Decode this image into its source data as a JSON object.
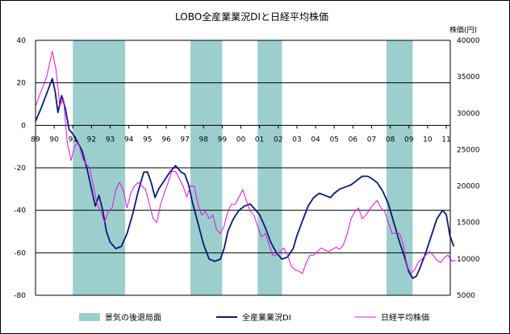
{
  "chart_data": {
    "type": "line",
    "title": "LOBO全産業業況DIと日経平均株価",
    "y2label": "株価(円)",
    "x_ticks": [
      "89",
      "90",
      "91",
      "92",
      "93",
      "94",
      "95",
      "96",
      "97",
      "98",
      "99",
      "00",
      "01",
      "02",
      "03",
      "04",
      "05",
      "06",
      "07",
      "08",
      "09",
      "10",
      "11"
    ],
    "ylim": [
      -80,
      40
    ],
    "y_ticks": [
      "40",
      "20",
      "0",
      "-20",
      "-40",
      "-60",
      "-80"
    ],
    "y2lim": [
      5000,
      40000
    ],
    "y2_ticks": [
      "40000",
      "35000",
      "30000",
      "25000",
      "20000",
      "15000",
      "10000",
      "5000"
    ],
    "grid": true,
    "legend_position": "bottom",
    "recessions": [
      {
        "start": 1991.0,
        "end": 1993.8
      },
      {
        "start": 1997.3,
        "end": 1999.0
      },
      {
        "start": 2000.9,
        "end": 2002.2
      },
      {
        "start": 2007.8,
        "end": 2009.2
      }
    ],
    "series": [
      {
        "name": "全産業業況DI",
        "axis": "left",
        "color": "#0a1a78",
        "points": [
          [
            1989.0,
            2
          ],
          [
            1989.3,
            8
          ],
          [
            1989.6,
            15
          ],
          [
            1989.9,
            22
          ],
          [
            1990.05,
            16
          ],
          [
            1990.2,
            6
          ],
          [
            1990.4,
            14
          ],
          [
            1990.6,
            8
          ],
          [
            1990.8,
            -2
          ],
          [
            1991.0,
            -4
          ],
          [
            1991.2,
            -7
          ],
          [
            1991.5,
            -12
          ],
          [
            1991.8,
            -22
          ],
          [
            1992.0,
            -30
          ],
          [
            1992.2,
            -38
          ],
          [
            1992.4,
            -33
          ],
          [
            1992.6,
            -40
          ],
          [
            1992.8,
            -50
          ],
          [
            1993.0,
            -55
          ],
          [
            1993.3,
            -58
          ],
          [
            1993.6,
            -57
          ],
          [
            1993.9,
            -51
          ],
          [
            1994.2,
            -42
          ],
          [
            1994.5,
            -31
          ],
          [
            1994.8,
            -22
          ],
          [
            1995.0,
            -22
          ],
          [
            1995.2,
            -27
          ],
          [
            1995.4,
            -34
          ],
          [
            1995.6,
            -30
          ],
          [
            1995.9,
            -26
          ],
          [
            1996.2,
            -22
          ],
          [
            1996.5,
            -19
          ],
          [
            1996.8,
            -22
          ],
          [
            1997.0,
            -23
          ],
          [
            1997.2,
            -28
          ],
          [
            1997.4,
            -36
          ],
          [
            1997.7,
            -46
          ],
          [
            1998.0,
            -56
          ],
          [
            1998.3,
            -63
          ],
          [
            1998.6,
            -64
          ],
          [
            1998.9,
            -63
          ],
          [
            1999.1,
            -58
          ],
          [
            1999.3,
            -50
          ],
          [
            1999.6,
            -44
          ],
          [
            1999.9,
            -40
          ],
          [
            2000.2,
            -38
          ],
          [
            2000.5,
            -37
          ],
          [
            2000.8,
            -40
          ],
          [
            2001.0,
            -42
          ],
          [
            2001.3,
            -48
          ],
          [
            2001.6,
            -55
          ],
          [
            2001.9,
            -60
          ],
          [
            2002.2,
            -63
          ],
          [
            2002.5,
            -62
          ],
          [
            2002.8,
            -58
          ],
          [
            2003.0,
            -52
          ],
          [
            2003.3,
            -45
          ],
          [
            2003.6,
            -38
          ],
          [
            2003.9,
            -34
          ],
          [
            2004.2,
            -32
          ],
          [
            2004.5,
            -33
          ],
          [
            2004.8,
            -34
          ],
          [
            2005.0,
            -32
          ],
          [
            2005.3,
            -30
          ],
          [
            2005.6,
            -29
          ],
          [
            2005.9,
            -28
          ],
          [
            2006.2,
            -26
          ],
          [
            2006.5,
            -24
          ],
          [
            2006.8,
            -24
          ],
          [
            2007.0,
            -25
          ],
          [
            2007.3,
            -27
          ],
          [
            2007.6,
            -31
          ],
          [
            2007.9,
            -37
          ],
          [
            2008.2,
            -46
          ],
          [
            2008.5,
            -55
          ],
          [
            2008.8,
            -63
          ],
          [
            2009.0,
            -69
          ],
          [
            2009.2,
            -72
          ],
          [
            2009.4,
            -71
          ],
          [
            2009.6,
            -67
          ],
          [
            2009.9,
            -60
          ],
          [
            2010.2,
            -52
          ],
          [
            2010.5,
            -44
          ],
          [
            2010.8,
            -40
          ],
          [
            2011.0,
            -42
          ],
          [
            2011.2,
            -52
          ],
          [
            2011.4,
            -57
          ]
        ]
      },
      {
        "name": "日経平均株価",
        "axis": "right",
        "color": "#e010e0",
        "points": [
          [
            1989.0,
            31000
          ],
          [
            1989.3,
            33000
          ],
          [
            1989.6,
            35000
          ],
          [
            1989.9,
            38500
          ],
          [
            1990.1,
            36000
          ],
          [
            1990.3,
            31000
          ],
          [
            1990.5,
            32000
          ],
          [
            1990.7,
            26000
          ],
          [
            1990.9,
            23500
          ],
          [
            1991.1,
            25500
          ],
          [
            1991.3,
            26000
          ],
          [
            1991.5,
            24000
          ],
          [
            1991.7,
            23000
          ],
          [
            1991.9,
            22500
          ],
          [
            1992.1,
            20000
          ],
          [
            1992.3,
            17500
          ],
          [
            1992.5,
            16500
          ],
          [
            1992.7,
            15000
          ],
          [
            1992.9,
            16500
          ],
          [
            1993.1,
            17000
          ],
          [
            1993.3,
            19500
          ],
          [
            1993.5,
            20500
          ],
          [
            1993.7,
            19500
          ],
          [
            1993.9,
            17000
          ],
          [
            1994.1,
            19000
          ],
          [
            1994.3,
            20000
          ],
          [
            1994.5,
            20500
          ],
          [
            1994.7,
            20000
          ],
          [
            1994.9,
            19500
          ],
          [
            1995.1,
            17500
          ],
          [
            1995.3,
            15500
          ],
          [
            1995.5,
            15000
          ],
          [
            1995.7,
            17500
          ],
          [
            1995.9,
            19000
          ],
          [
            1996.1,
            20500
          ],
          [
            1996.3,
            22000
          ],
          [
            1996.5,
            22000
          ],
          [
            1996.7,
            21000
          ],
          [
            1996.9,
            20000
          ],
          [
            1997.1,
            18500
          ],
          [
            1997.3,
            20000
          ],
          [
            1997.5,
            20000
          ],
          [
            1997.7,
            17500
          ],
          [
            1997.9,
            16000
          ],
          [
            1998.1,
            16500
          ],
          [
            1998.3,
            15500
          ],
          [
            1998.5,
            16000
          ],
          [
            1998.7,
            14000
          ],
          [
            1998.9,
            13500
          ],
          [
            1999.1,
            14500
          ],
          [
            1999.3,
            16500
          ],
          [
            1999.5,
            17500
          ],
          [
            1999.7,
            17500
          ],
          [
            1999.9,
            18500
          ],
          [
            2000.1,
            19500
          ],
          [
            2000.3,
            18000
          ],
          [
            2000.5,
            16500
          ],
          [
            2000.7,
            16000
          ],
          [
            2000.9,
            14500
          ],
          [
            2001.1,
            13000
          ],
          [
            2001.3,
            13500
          ],
          [
            2001.5,
            12000
          ],
          [
            2001.7,
            10500
          ],
          [
            2001.9,
            10500
          ],
          [
            2002.1,
            11000
          ],
          [
            2002.3,
            11500
          ],
          [
            2002.5,
            10500
          ],
          [
            2002.7,
            9000
          ],
          [
            2002.9,
            8500
          ],
          [
            2003.1,
            8300
          ],
          [
            2003.3,
            8000
          ],
          [
            2003.5,
            9500
          ],
          [
            2003.7,
            10500
          ],
          [
            2003.9,
            10500
          ],
          [
            2004.1,
            11000
          ],
          [
            2004.3,
            11500
          ],
          [
            2004.5,
            11200
          ],
          [
            2004.7,
            11000
          ],
          [
            2004.9,
            11300
          ],
          [
            2005.1,
            11600
          ],
          [
            2005.3,
            11300
          ],
          [
            2005.5,
            12000
          ],
          [
            2005.7,
            13500
          ],
          [
            2005.9,
            15500
          ],
          [
            2006.1,
            16500
          ],
          [
            2006.3,
            17000
          ],
          [
            2006.5,
            15500
          ],
          [
            2006.7,
            16000
          ],
          [
            2006.9,
            16800
          ],
          [
            2007.1,
            17500
          ],
          [
            2007.3,
            18000
          ],
          [
            2007.5,
            17000
          ],
          [
            2007.7,
            16500
          ],
          [
            2007.9,
            15000
          ],
          [
            2008.1,
            13500
          ],
          [
            2008.3,
            13500
          ],
          [
            2008.5,
            13500
          ],
          [
            2008.7,
            12000
          ],
          [
            2008.9,
            9000
          ],
          [
            2009.1,
            8000
          ],
          [
            2009.3,
            8500
          ],
          [
            2009.5,
            9500
          ],
          [
            2009.7,
            10000
          ],
          [
            2009.9,
            10500
          ],
          [
            2010.1,
            11000
          ],
          [
            2010.3,
            10500
          ],
          [
            2010.5,
            9800
          ],
          [
            2010.7,
            9500
          ],
          [
            2010.9,
            10200
          ],
          [
            2011.1,
            10500
          ],
          [
            2011.3,
            9700
          ],
          [
            2011.5,
            9800
          ]
        ]
      }
    ],
    "legend": [
      {
        "name": "景気の後退局面",
        "kind": "box",
        "color": "#9ccece"
      },
      {
        "name": "全産業業況DI",
        "kind": "line",
        "color": "#0a1a78"
      },
      {
        "name": "日経平均株価",
        "kind": "line",
        "color": "#e010e0"
      }
    ]
  }
}
